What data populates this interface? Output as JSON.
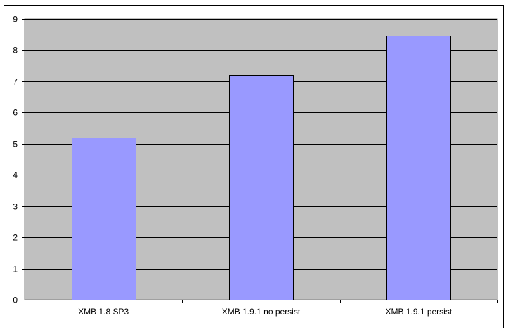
{
  "chart_data": {
    "type": "bar",
    "title": "",
    "xlabel": "",
    "ylabel": "",
    "categories": [
      "XMB 1.8 SP3",
      "XMB 1.9.1 no persist",
      "XMB 1.9.1 persist"
    ],
    "values": [
      5.2,
      7.2,
      8.45
    ],
    "ylim": [
      0,
      9
    ],
    "yticks": [
      "0",
      "1",
      "2",
      "3",
      "4",
      "5",
      "6",
      "7",
      "8",
      "9"
    ],
    "grid": true,
    "legend": "none",
    "colors": {
      "bar": "#9999FF",
      "plot_background": "#C0C0C0",
      "gridline": "#000000"
    }
  }
}
